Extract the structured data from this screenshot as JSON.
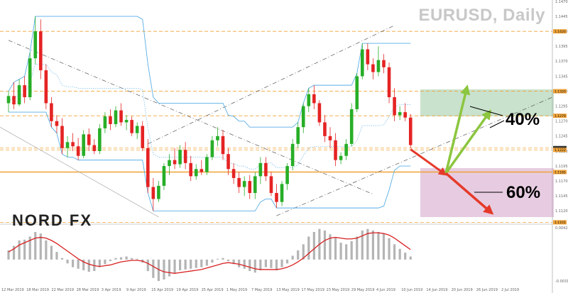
{
  "header": {
    "title": "EURUSD, Daily"
  },
  "brand": {
    "logo": "NORD FX"
  },
  "annotations": {
    "up_pct": "40%",
    "down_pct": "60%"
  },
  "colors": {
    "bull": "#27ae27",
    "bear": "#e52323",
    "band": "#5aaee6",
    "level": "#f0a236",
    "macd_signal": "#d82020",
    "macd_hist": "#b4b4b4",
    "up_arrow": "#8cc63f",
    "down_arrow": "#e53a2a",
    "up_zone": "#c9e2cd",
    "down_zone": "#e7cce1"
  },
  "chart_data": {
    "type": "candlestick",
    "title": "EURUSD, Daily",
    "ylim": [
      1.1105,
      1.147
    ],
    "y_ticks": [
      "1.1470",
      "1.1445",
      "1.1420",
      "1.1395",
      "1.1370",
      "1.1345",
      "1.1320",
      "1.1295",
      "1.1270",
      "1.1245",
      "1.1220",
      "1.1195",
      "1.1170",
      "1.1145",
      "1.1120"
    ],
    "highlighted_prices": [
      "1.1420",
      "1.1320",
      "1.1279",
      "1.1225",
      "1.1222",
      "1.1185",
      "1.1101"
    ],
    "current_price": "1.1225",
    "x_labels": [
      "12 Mar 2019",
      "18 Mar 2019",
      "22 Mar 2019",
      "28 Mar 2019",
      "3 Apr 2019",
      "9 Apr 2019",
      "15 Apr 2019",
      "19 Apr 2019",
      "25 Apr 2019",
      "1 May 2019",
      "7 May 2019",
      "13 May 2019",
      "17 May 2019",
      "23 May 2019",
      "29 May 2019",
      "4 Jun 2019",
      "10 Jun 2019",
      "14 Jun 2019",
      "20 Jun 2019",
      "26 Jun 2019",
      "2 Jul 2019"
    ],
    "macd_ticks": [
      "0.00425",
      "-0.00316"
    ],
    "candles": [
      {
        "o": 1.13,
        "h": 1.132,
        "l": 1.1285,
        "c": 1.1312
      },
      {
        "o": 1.1312,
        "h": 1.1335,
        "l": 1.129,
        "c": 1.1298
      },
      {
        "o": 1.1298,
        "h": 1.134,
        "l": 1.1295,
        "c": 1.133
      },
      {
        "o": 1.133,
        "h": 1.1345,
        "l": 1.13,
        "c": 1.131
      },
      {
        "o": 1.131,
        "h": 1.1385,
        "l": 1.1305,
        "c": 1.1375
      },
      {
        "o": 1.1375,
        "h": 1.1445,
        "l": 1.1365,
        "c": 1.142
      },
      {
        "o": 1.142,
        "h": 1.144,
        "l": 1.134,
        "c": 1.1355
      },
      {
        "o": 1.1355,
        "h": 1.1365,
        "l": 1.129,
        "c": 1.13
      },
      {
        "o": 1.13,
        "h": 1.131,
        "l": 1.126,
        "c": 1.127
      },
      {
        "o": 1.127,
        "h": 1.128,
        "l": 1.125,
        "c": 1.1262
      },
      {
        "o": 1.1262,
        "h": 1.1275,
        "l": 1.1215,
        "c": 1.1225
      },
      {
        "o": 1.1225,
        "h": 1.1245,
        "l": 1.121,
        "c": 1.1235
      },
      {
        "o": 1.1235,
        "h": 1.125,
        "l": 1.122,
        "c": 1.1228
      },
      {
        "o": 1.1228,
        "h": 1.1242,
        "l": 1.1205,
        "c": 1.1212
      },
      {
        "o": 1.1212,
        "h": 1.1255,
        "l": 1.1208,
        "c": 1.1248
      },
      {
        "o": 1.1248,
        "h": 1.1258,
        "l": 1.122,
        "c": 1.123
      },
      {
        "o": 1.123,
        "h": 1.124,
        "l": 1.1215,
        "c": 1.122
      },
      {
        "o": 1.122,
        "h": 1.1265,
        "l": 1.1215,
        "c": 1.1258
      },
      {
        "o": 1.1258,
        "h": 1.1285,
        "l": 1.125,
        "c": 1.1278
      },
      {
        "o": 1.1278,
        "h": 1.129,
        "l": 1.1255,
        "c": 1.1265
      },
      {
        "o": 1.1265,
        "h": 1.1295,
        "l": 1.126,
        "c": 1.1288
      },
      {
        "o": 1.1288,
        "h": 1.13,
        "l": 1.1262,
        "c": 1.1268
      },
      {
        "o": 1.1268,
        "h": 1.128,
        "l": 1.1255,
        "c": 1.1272
      },
      {
        "o": 1.1272,
        "h": 1.1278,
        "l": 1.1245,
        "c": 1.125
      },
      {
        "o": 1.125,
        "h": 1.1268,
        "l": 1.124,
        "c": 1.1262
      },
      {
        "o": 1.1262,
        "h": 1.127,
        "l": 1.122,
        "c": 1.1225
      },
      {
        "o": 1.1225,
        "h": 1.124,
        "l": 1.115,
        "c": 1.116
      },
      {
        "o": 1.116,
        "h": 1.1175,
        "l": 1.112,
        "c": 1.114
      },
      {
        "o": 1.114,
        "h": 1.117,
        "l": 1.1135,
        "c": 1.1162
      },
      {
        "o": 1.1162,
        "h": 1.12,
        "l": 1.1155,
        "c": 1.1195
      },
      {
        "o": 1.1195,
        "h": 1.1215,
        "l": 1.118,
        "c": 1.1205
      },
      {
        "o": 1.1205,
        "h": 1.1225,
        "l": 1.119,
        "c": 1.1198
      },
      {
        "o": 1.1198,
        "h": 1.123,
        "l": 1.1192,
        "c": 1.1222
      },
      {
        "o": 1.1222,
        "h": 1.1235,
        "l": 1.119,
        "c": 1.12
      },
      {
        "o": 1.12,
        "h": 1.1212,
        "l": 1.117,
        "c": 1.1178
      },
      {
        "o": 1.1178,
        "h": 1.1198,
        "l": 1.1172,
        "c": 1.119
      },
      {
        "o": 1.119,
        "h": 1.1205,
        "l": 1.118,
        "c": 1.1185
      },
      {
        "o": 1.1185,
        "h": 1.1215,
        "l": 1.118,
        "c": 1.121
      },
      {
        "o": 1.121,
        "h": 1.1245,
        "l": 1.1205,
        "c": 1.1238
      },
      {
        "o": 1.1238,
        "h": 1.126,
        "l": 1.1228,
        "c": 1.1245
      },
      {
        "o": 1.1245,
        "h": 1.1255,
        "l": 1.1205,
        "c": 1.1215
      },
      {
        "o": 1.1215,
        "h": 1.1225,
        "l": 1.118,
        "c": 1.119
      },
      {
        "o": 1.119,
        "h": 1.12,
        "l": 1.1165,
        "c": 1.1175
      },
      {
        "o": 1.1175,
        "h": 1.1185,
        "l": 1.115,
        "c": 1.116
      },
      {
        "o": 1.116,
        "h": 1.1178,
        "l": 1.1145,
        "c": 1.117
      },
      {
        "o": 1.117,
        "h": 1.118,
        "l": 1.114,
        "c": 1.115
      },
      {
        "o": 1.115,
        "h": 1.1185,
        "l": 1.114,
        "c": 1.1178
      },
      {
        "o": 1.1178,
        "h": 1.121,
        "l": 1.1165,
        "c": 1.12
      },
      {
        "o": 1.12,
        "h": 1.121,
        "l": 1.117,
        "c": 1.1178
      },
      {
        "o": 1.1178,
        "h": 1.1185,
        "l": 1.1145,
        "c": 1.115
      },
      {
        "o": 1.115,
        "h": 1.1165,
        "l": 1.1125,
        "c": 1.1135
      },
      {
        "o": 1.1135,
        "h": 1.117,
        "l": 1.1128,
        "c": 1.1165
      },
      {
        "o": 1.1165,
        "h": 1.12,
        "l": 1.1155,
        "c": 1.1195
      },
      {
        "o": 1.1195,
        "h": 1.124,
        "l": 1.1188,
        "c": 1.1232
      },
      {
        "o": 1.1232,
        "h": 1.1268,
        "l": 1.1225,
        "c": 1.126
      },
      {
        "o": 1.126,
        "h": 1.13,
        "l": 1.125,
        "c": 1.1295
      },
      {
        "o": 1.1295,
        "h": 1.1325,
        "l": 1.1285,
        "c": 1.1315
      },
      {
        "o": 1.1315,
        "h": 1.133,
        "l": 1.129,
        "c": 1.13
      },
      {
        "o": 1.13,
        "h": 1.1305,
        "l": 1.1262,
        "c": 1.1268
      },
      {
        "o": 1.1268,
        "h": 1.128,
        "l": 1.1235,
        "c": 1.1245
      },
      {
        "o": 1.1245,
        "h": 1.126,
        "l": 1.1225,
        "c": 1.1238
      },
      {
        "o": 1.1238,
        "h": 1.125,
        "l": 1.1195,
        "c": 1.1205
      },
      {
        "o": 1.1205,
        "h": 1.1218,
        "l": 1.1198,
        "c": 1.1212
      },
      {
        "o": 1.1212,
        "h": 1.124,
        "l": 1.1205,
        "c": 1.1232
      },
      {
        "o": 1.1232,
        "h": 1.13,
        "l": 1.1228,
        "c": 1.129
      },
      {
        "o": 1.129,
        "h": 1.135,
        "l": 1.1285,
        "c": 1.1345
      },
      {
        "o": 1.1345,
        "h": 1.14,
        "l": 1.134,
        "c": 1.139
      },
      {
        "o": 1.139,
        "h": 1.14,
        "l": 1.1355,
        "c": 1.1365
      },
      {
        "o": 1.1365,
        "h": 1.1375,
        "l": 1.134,
        "c": 1.1352
      },
      {
        "o": 1.1352,
        "h": 1.1395,
        "l": 1.1345,
        "c": 1.1372
      },
      {
        "o": 1.1372,
        "h": 1.1382,
        "l": 1.135,
        "c": 1.136
      },
      {
        "o": 1.136,
        "h": 1.1368,
        "l": 1.13,
        "c": 1.131
      },
      {
        "o": 1.131,
        "h": 1.1325,
        "l": 1.127,
        "c": 1.128
      },
      {
        "o": 1.128,
        "h": 1.1295,
        "l": 1.1272,
        "c": 1.1285
      },
      {
        "o": 1.1285,
        "h": 1.13,
        "l": 1.127,
        "c": 1.1276
      },
      {
        "o": 1.1276,
        "h": 1.1282,
        "l": 1.1225,
        "c": 1.123
      }
    ],
    "macd_hist": [
      0.0012,
      0.0018,
      0.0025,
      0.0026,
      0.003,
      0.0036,
      0.0034,
      0.0025,
      0.0018,
      0.001,
      0.0002,
      -0.0005,
      -0.001,
      -0.0012,
      -0.0014,
      -0.0016,
      -0.0015,
      -0.001,
      -0.0006,
      -0.0002,
      0.0002,
      0.0003,
      0.0004,
      0.0002,
      0.0001,
      -0.0004,
      -0.0015,
      -0.0024,
      -0.0028,
      -0.0026,
      -0.0022,
      -0.0018,
      -0.0014,
      -0.0013,
      -0.0012,
      -0.0011,
      -0.001,
      -0.0008,
      -0.0004,
      0.0001,
      0.0002,
      -0.0002,
      -0.0006,
      -0.001,
      -0.0012,
      -0.0015,
      -0.0017,
      -0.0014,
      -0.001,
      -0.0011,
      -0.0014,
      -0.001,
      -0.0005,
      0.0005,
      0.0012,
      0.002,
      0.003,
      0.0036,
      0.004,
      0.0038,
      0.0033,
      0.0028,
      0.0022,
      0.002,
      0.0024,
      0.003,
      0.0038,
      0.004,
      0.0038,
      0.0036,
      0.0034,
      0.0028,
      0.002,
      0.0014,
      0.0009,
      0.0004
    ],
    "macd_signal": [
      0.001,
      0.0014,
      0.0019,
      0.0022,
      0.0025,
      0.0028,
      0.0029,
      0.0028,
      0.0025,
      0.0021,
      0.0016,
      0.0011,
      0.0006,
      0.0001,
      -0.0003,
      -0.0006,
      -0.0008,
      -0.0009,
      -0.0008,
      -0.0007,
      -0.0005,
      -0.0003,
      -0.0002,
      -0.0001,
      -0.0001,
      -0.0002,
      -0.0005,
      -0.0009,
      -0.0013,
      -0.0016,
      -0.0017,
      -0.0018,
      -0.0017,
      -0.0016,
      -0.0015,
      -0.0014,
      -0.0013,
      -0.0011,
      -0.0009,
      -0.0007,
      -0.0005,
      -0.0004,
      -0.0005,
      -0.0006,
      -0.0008,
      -0.001,
      -0.0012,
      -0.0013,
      -0.0013,
      -0.0013,
      -0.0013,
      -0.0012,
      -0.001,
      -0.0007,
      -0.0003,
      0.0002,
      0.0008,
      0.0014,
      0.002,
      0.0025,
      0.0028,
      0.0029,
      0.0028,
      0.0027,
      0.0027,
      0.0028,
      0.0031,
      0.0034,
      0.0035,
      0.0035,
      0.0034,
      0.0032,
      0.0028,
      0.0023,
      0.0018,
      0.0013
    ]
  }
}
